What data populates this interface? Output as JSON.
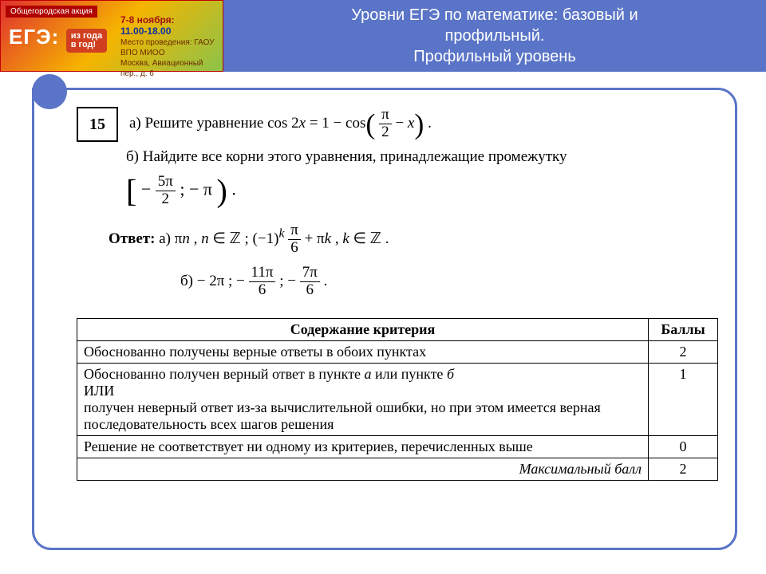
{
  "header": {
    "ribbon": "Общегородская акция",
    "logo_big": "ЕГЭ:",
    "logo_tag": "из года\nв год!",
    "date": "7-8 ноября:",
    "time": "11.00-18.00",
    "venue1": "Место проведения: ГАОУ ВПО МИОО",
    "venue2": "Москва, Авиационный пер., д. 6",
    "title_l1": "Уровни ЕГЭ по математике: базовый и",
    "title_l2": "профильный.",
    "title_l3": "Профильный уровень"
  },
  "problem": {
    "number": "15",
    "partA_prefix": "а) Решите уравнение  cos 2",
    "partA_eq_mid": " = 1 − cos",
    "partB": "б) Найдите   все   корни   этого   уравнения,   принадлежащие   промежутку",
    "interval_left": "−",
    "interval_frac_n": "5π",
    "interval_frac_d": "2",
    "interval_right": "; − π",
    "answer_label": "Ответ:",
    "ansA_prefix": "а)  π",
    "ansA_mid1": " ,  ",
    "ansA_set1": " ∈ ℤ ;   (−1)",
    "ansA_frac_n": "π",
    "ansA_frac_d": "6",
    "ansA_tail": " + π",
    "ansA_set2": " ∈ ℤ .",
    "ansB_prefix": "б)  − 2π ;  −",
    "ansB_f1n": "11π",
    "ansB_f1d": "6",
    "ansB_mid": " ;  −",
    "ansB_f2n": "7π",
    "ansB_f2d": "6",
    "ansB_end": " ."
  },
  "table": {
    "h1": "Содержание критерия",
    "h2": "Баллы",
    "rows": [
      {
        "c": "Обоснованно получены верные ответы в обоих пунктах",
        "p": "2"
      },
      {
        "c": "Обоснованно получен верный ответ в пункте <i>а</i> или пункте <i>б</i><br>ИЛИ<br>получен неверный ответ из-за вычислительной ошибки, но при этом имеется верная последовательность всех шагов решения",
        "p": "1"
      },
      {
        "c": "Решение не соответствует ни одному из критериев, перечисленных выше",
        "p": "0"
      }
    ],
    "max_label": "Максимальный балл",
    "max_value": "2"
  },
  "colors": {
    "accent": "#5a74c7",
    "badge_border": "#c00000"
  }
}
